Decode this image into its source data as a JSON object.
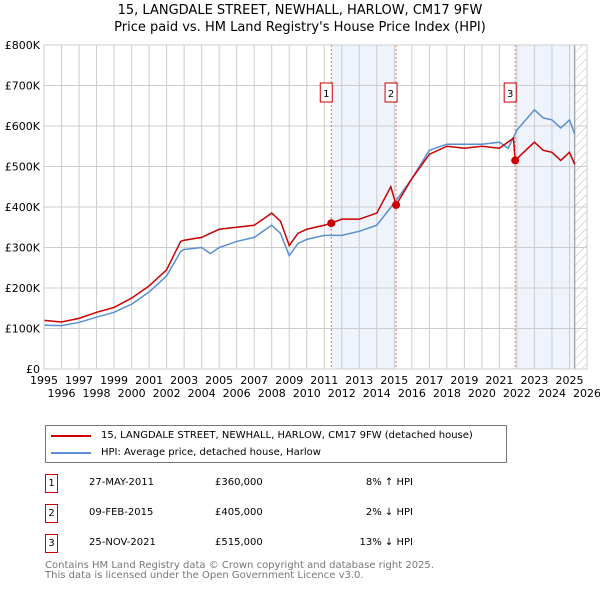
{
  "title": "15, LANGDALE STREET, NEWHALL, HARLOW, CM17 9FW",
  "subtitle": "Price paid vs. HM Land Registry's House Price Index (HPI)",
  "colors": {
    "property": "#cc0000",
    "hpi": "#5b8fd0",
    "shade": "#eef3fc"
  },
  "chart_data": {
    "type": "line",
    "xlim": [
      1995,
      2026
    ],
    "ylim": [
      0,
      800000
    ],
    "yticks": [
      "£0",
      "£100K",
      "£200K",
      "£300K",
      "£400K",
      "£500K",
      "£600K",
      "£700K",
      "£800K"
    ],
    "xticks": [
      "1995",
      "1996",
      "1997",
      "1998",
      "1999",
      "2000",
      "2001",
      "2002",
      "2003",
      "2004",
      "2005",
      "2006",
      "2007",
      "2008",
      "2009",
      "2010",
      "2011",
      "2012",
      "2013",
      "2014",
      "2015",
      "2016",
      "2017",
      "2018",
      "2019",
      "2020",
      "2021",
      "2022",
      "2023",
      "2024",
      "2025",
      "2026"
    ],
    "shaded_ranges": [
      [
        2011.4,
        2015.1
      ],
      [
        2021.9,
        2025.3
      ]
    ],
    "hatch_from": 2025.3,
    "series": [
      {
        "name": "15, LANGDALE STREET, NEWHALL, HARLOW, CM17 9FW (detached house)",
        "color": "#cc0000",
        "x": [
          1995,
          1996,
          1997,
          1998,
          1999,
          2000,
          2001,
          2002,
          2002.8,
          2003,
          2004,
          2004.5,
          2005,
          2006,
          2007,
          2008,
          2008.5,
          2009,
          2009.5,
          2010,
          2011,
          2011.4,
          2012,
          2013,
          2014,
          2014.8,
          2015.1,
          2016,
          2017,
          2018,
          2019,
          2020,
          2021,
          2021.8,
          2021.9,
          2022.5,
          2023,
          2023.5,
          2024,
          2024.5,
          2025,
          2025.3
        ],
        "y": [
          120000,
          116000,
          125000,
          140000,
          152000,
          175000,
          205000,
          245000,
          315000,
          318000,
          325000,
          335000,
          345000,
          350000,
          355000,
          385000,
          365000,
          305000,
          335000,
          345000,
          355000,
          360000,
          370000,
          370000,
          385000,
          450000,
          405000,
          470000,
          530000,
          550000,
          545000,
          550000,
          545000,
          570000,
          515000,
          540000,
          560000,
          540000,
          535000,
          515000,
          535000,
          505000
        ]
      },
      {
        "name": "HPI: Average price, detached house, Harlow",
        "color": "#5b8fd0",
        "x": [
          1995,
          1996,
          1997,
          1998,
          1999,
          2000,
          2001,
          2002,
          2002.8,
          2003,
          2004,
          2004.5,
          2005,
          2006,
          2007,
          2008,
          2008.5,
          2009,
          2009.5,
          2010,
          2011,
          2012,
          2013,
          2014,
          2015,
          2016,
          2017,
          2018,
          2019,
          2020,
          2021,
          2021.5,
          2022,
          2023,
          2023.5,
          2024,
          2024.5,
          2025,
          2025.3
        ],
        "y": [
          108000,
          107000,
          115000,
          128000,
          140000,
          160000,
          190000,
          230000,
          290000,
          295000,
          300000,
          285000,
          300000,
          315000,
          325000,
          355000,
          335000,
          280000,
          310000,
          320000,
          330000,
          330000,
          340000,
          355000,
          410000,
          470000,
          540000,
          555000,
          555000,
          555000,
          560000,
          545000,
          590000,
          640000,
          620000,
          615000,
          595000,
          615000,
          580000
        ]
      }
    ],
    "sales": [
      {
        "label": "1",
        "x": 2011.4,
        "y": 360000
      },
      {
        "label": "2",
        "x": 2015.1,
        "y": 405000
      },
      {
        "label": "3",
        "x": 2021.9,
        "y": 515000
      }
    ]
  },
  "legend": {
    "property": "15, LANGDALE STREET, NEWHALL, HARLOW, CM17 9FW (detached house)",
    "hpi": "HPI: Average price, detached house, Harlow"
  },
  "transactions": [
    {
      "num": "1",
      "date": "27-MAY-2011",
      "price": "£360,000",
      "hpi": "8% ↑ HPI"
    },
    {
      "num": "2",
      "date": "09-FEB-2015",
      "price": "£405,000",
      "hpi": "2% ↓ HPI"
    },
    {
      "num": "3",
      "date": "25-NOV-2021",
      "price": "£515,000",
      "hpi": "13% ↓ HPI"
    }
  ],
  "footer": {
    "line1": "Contains HM Land Registry data © Crown copyright and database right 2025.",
    "line2": "This data is licensed under the Open Government Licence v3.0."
  }
}
